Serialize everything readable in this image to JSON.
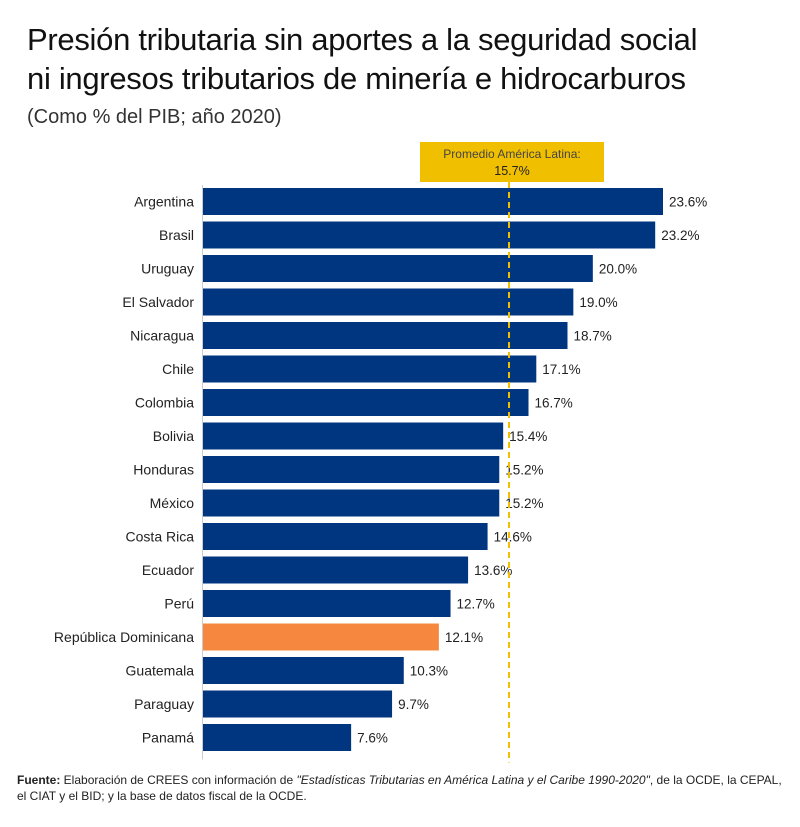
{
  "header": {
    "title_line1": "Presión tributaria sin aportes a la seguridad social",
    "title_line2": "ni ingresos tributarios de minería e hidrocarburos",
    "subtitle": "(Como % del PIB; año 2020)"
  },
  "colors": {
    "bar": "#003580",
    "highlight": "#f5883e",
    "average": "#f0c000",
    "axis": "#cccccc"
  },
  "chart_data": {
    "type": "bar",
    "orientation": "horizontal",
    "title": "Presión tributaria sin aportes a la seguridad social ni ingresos tributarios de minería e hidrocarburos",
    "subtitle": "(Como % del PIB; año 2020)",
    "xlabel": "",
    "ylabel": "",
    "xlim": [
      0,
      25
    ],
    "grid": false,
    "categories": [
      "Argentina",
      "Brasil",
      "Uruguay",
      "El Salvador",
      "Nicaragua",
      "Chile",
      "Colombia",
      "Bolivia",
      "Honduras",
      "México",
      "Costa Rica",
      "Ecuador",
      "Perú",
      "República Dominicana",
      "Guatemala",
      "Paraguay",
      "Panamá"
    ],
    "values": [
      23.6,
      23.2,
      20.0,
      19.0,
      18.7,
      17.1,
      16.7,
      15.4,
      15.2,
      15.2,
      14.6,
      13.6,
      12.7,
      12.1,
      10.3,
      9.7,
      7.6
    ],
    "data_labels": [
      "23.6%",
      "23.2%",
      "20.0%",
      "19.0%",
      "18.7%",
      "17.1%",
      "16.7%",
      "15.4%",
      "15.2%",
      "15.2%",
      "14.6%",
      "13.6%",
      "12.7%",
      "12.1%",
      "10.3%",
      "9.7%",
      "7.6%"
    ],
    "highlighted_category": "República Dominicana",
    "reference_line": {
      "value": 15.7,
      "label_line1": "Promedio América Latina:",
      "label_line2": "15.7%"
    }
  },
  "footer": {
    "source_label": "Fuente:",
    "text_before": " Elaboración de CREES con información de ",
    "italic_text": "\"Estadísticas Tributarias en América Latina y el Caribe 1990-2020\"",
    "text_after": ", de la OCDE, la CEPAL, el CIAT y el BID; y la base de datos fiscal de la OCDE."
  }
}
